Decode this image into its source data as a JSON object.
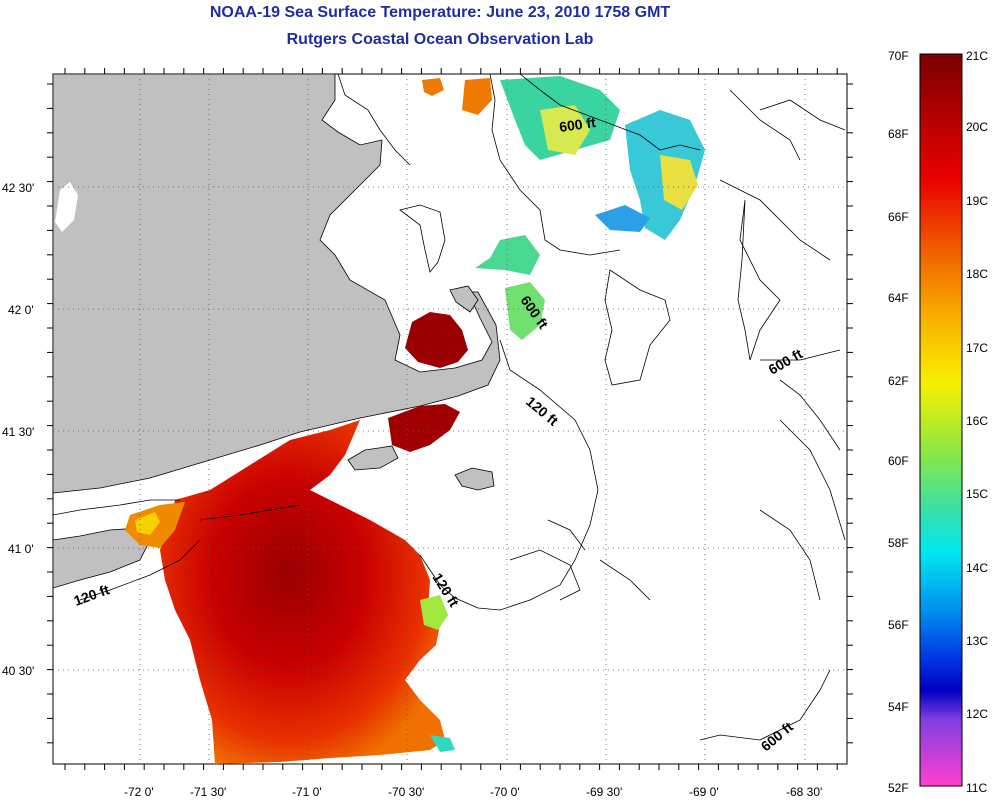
{
  "title": "NOAA-19 Sea Surface Temperature:  June 23, 2010 1758 GMT",
  "subtitle": "Rutgers Coastal Ocean Observation Lab",
  "longitude_labels": [
    "-72 0'",
    "-71 30'",
    "-71 0'",
    "-70 30'",
    "-70 0'",
    "-69 30'",
    "-69 0'",
    "-68 30'"
  ],
  "latitude_labels": [
    "42 30'",
    "42 0'",
    "41 30'",
    "41 0'",
    "40 30'"
  ],
  "contour_labels": [
    "600 ft",
    "600 ft",
    "600 ft",
    "600 ft",
    "120 ft",
    "120 ft",
    "120 ft"
  ],
  "colorbar": {
    "fahrenheit_labels": [
      "70F",
      "68F",
      "66F",
      "64F",
      "62F",
      "60F",
      "58F",
      "56F",
      "54F",
      "52F"
    ],
    "celsius_labels": [
      "21C",
      "20C",
      "19C",
      "18C",
      "17C",
      "16C",
      "15C",
      "14C",
      "13C",
      "12C",
      "11C"
    ]
  },
  "colors": {
    "title": "#1d2f9e",
    "land": "#c0c0c0",
    "warm": "#8b0000",
    "hot": "#e00000"
  }
}
